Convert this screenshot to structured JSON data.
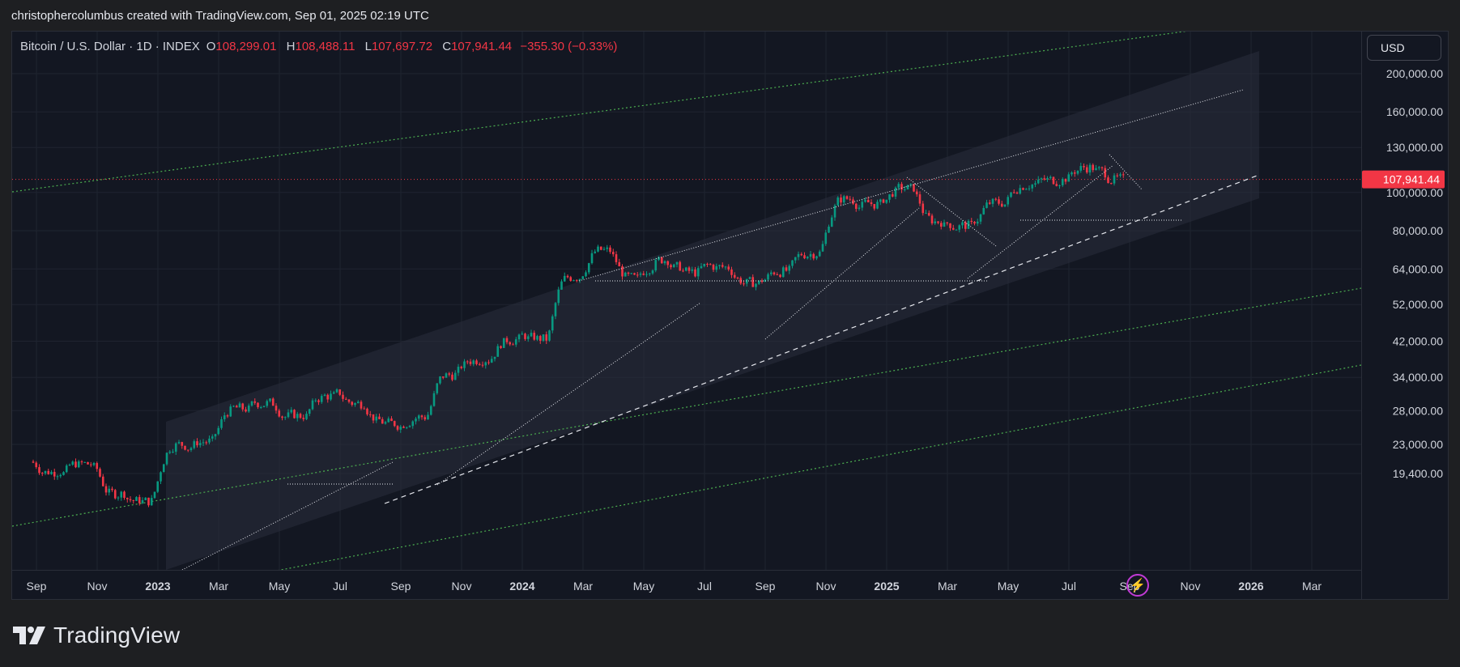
{
  "header": {
    "title": "christophercolumbus created with TradingView.com, Sep 01, 2025 02:19 UTC"
  },
  "legend": {
    "symbol": "Bitcoin / U.S. Dollar · 1D · INDEX",
    "open_label": "O",
    "open": "108,299.01",
    "high_label": "H",
    "high": "108,488.11",
    "low_label": "L",
    "low": "107,697.72",
    "close_label": "C",
    "close": "107,941.44",
    "change": "−355.30 (−0.33%)"
  },
  "currency_button": "USD",
  "price_scale": {
    "ticks": [
      "200,000.00",
      "160,000.00",
      "130,000.00",
      "100,000.00",
      "80,000.00",
      "64,000.00",
      "52,000.00",
      "42,000.00",
      "34,000.00",
      "28,000.00",
      "23,000.00",
      "19,400.00"
    ],
    "tick_values": [
      200000,
      160000,
      130000,
      100000,
      80000,
      64000,
      52000,
      42000,
      34000,
      28000,
      23000,
      19400
    ],
    "last_price": "107,941.44",
    "last_price_value": 107941.44,
    "last_price_color": "#f23645"
  },
  "time_scale": {
    "ticks": [
      "Sep",
      "Nov",
      "2023",
      "Mar",
      "May",
      "Jul",
      "Sep",
      "Nov",
      "2024",
      "Mar",
      "May",
      "Jul",
      "Sep",
      "Nov",
      "2025",
      "Mar",
      "May",
      "Jul",
      "Sep",
      "Nov",
      "2026",
      "Mar"
    ],
    "bold": [
      false,
      false,
      true,
      false,
      false,
      false,
      false,
      false,
      true,
      false,
      false,
      false,
      false,
      false,
      true,
      false,
      false,
      false,
      false,
      false,
      true,
      false
    ]
  },
  "colors": {
    "up": "#089981",
    "down": "#f23645",
    "channel": "#4caf50",
    "background": "#131722"
  },
  "footer": {
    "brand": "TradingView"
  },
  "chart_data": {
    "type": "candlestick",
    "y_scale": "log",
    "series": [
      {
        "name": "Bitcoin / U.S. Dollar",
        "x": [
          "2022-09",
          "2022-10",
          "2022-11",
          "2022-12",
          "2023-01",
          "2023-02",
          "2023-03",
          "2023-04",
          "2023-05",
          "2023-06",
          "2023-07",
          "2023-08",
          "2023-09",
          "2023-10",
          "2023-11",
          "2023-12",
          "2024-01",
          "2024-02",
          "2024-03",
          "2024-04",
          "2024-05",
          "2024-06",
          "2024-07",
          "2024-08",
          "2024-09",
          "2024-10",
          "2024-11",
          "2024-12",
          "2025-01",
          "2025-02",
          "2025-03",
          "2025-04",
          "2025-05",
          "2025-06",
          "2025-07",
          "2025-08"
        ],
        "close": [
          19600,
          20500,
          17200,
          16500,
          23000,
          23400,
          28400,
          29300,
          27200,
          30500,
          29200,
          26000,
          27000,
          34500,
          37700,
          42300,
          42600,
          61000,
          71300,
          60600,
          67500,
          62700,
          64600,
          58900,
          63300,
          70200,
          96400,
          93400,
          102400,
          84400,
          82500,
          94200,
          104600,
          107100,
          115700,
          108200
        ]
      }
    ]
  }
}
